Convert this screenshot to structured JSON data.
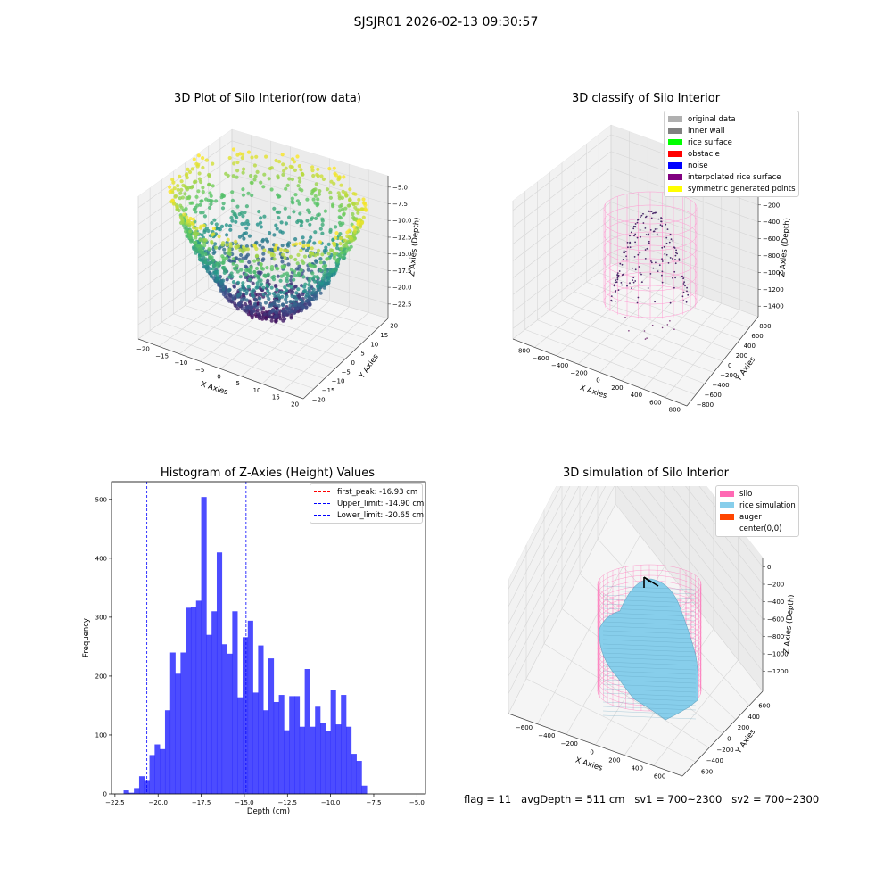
{
  "suptitle": "SJSJR01 2026-02-13 09:30:57",
  "panel1": {
    "title": "3D Plot of Silo Interior(row data)",
    "xlabel": "X Axies",
    "ylabel": "Y Axies",
    "zlabel": "Z Axies (Depth)",
    "xticks": [
      "−20",
      "−15",
      "−10",
      "−5",
      "0",
      "5",
      "10",
      "15",
      "20"
    ],
    "yticks": [
      "−20",
      "−15",
      "−10",
      "−5",
      "0",
      "5",
      "10",
      "15",
      "20"
    ],
    "zticks": [
      "−5.0",
      "−7.5",
      "−10.0",
      "−12.5",
      "−15.0",
      "−17.5",
      "−20.0",
      "−22.5"
    ],
    "colormap": "viridis"
  },
  "panel2": {
    "title": "3D classify of Silo Interior",
    "xlabel": "X Axies",
    "ylabel": "Y Axies",
    "zlabel": "Z Axies (Depth)",
    "xticks": [
      "−800",
      "−600",
      "−400",
      "−200",
      "0",
      "200",
      "400",
      "600",
      "800"
    ],
    "yticks": [
      "−800",
      "−600",
      "−400",
      "−200",
      "0",
      "200",
      "400",
      "600",
      "800"
    ],
    "zticks": [
      "0",
      "−200",
      "−400",
      "−600",
      "−800",
      "−1000",
      "−1200",
      "−1400"
    ],
    "legend": [
      {
        "label": "original data",
        "color": "#b0b0b0"
      },
      {
        "label": "inner wall",
        "color": "#808080"
      },
      {
        "label": "rice surface",
        "color": "#00ff00"
      },
      {
        "label": "obstacle",
        "color": "#ff0000"
      },
      {
        "label": "noise",
        "color": "#0000ff"
      },
      {
        "label": "interpolated rice surface",
        "color": "#800080"
      },
      {
        "label": "symmetric generated points",
        "color": "#ffff00"
      }
    ]
  },
  "panel3": {
    "title": "Histogram of Z-Axies (Height) Values",
    "legend": [
      {
        "label": "first_peak: -16.93 cm",
        "color": "#ff0000"
      },
      {
        "label": "Upper_limit: -14.90 cm",
        "color": "#0000ff"
      },
      {
        "label": "Lower_limit: -20.65 cm",
        "color": "#0000ff"
      }
    ]
  },
  "panel4": {
    "title": "3D simulation of Silo Interior",
    "xlabel": "X Axies",
    "ylabel": "Y Axies",
    "zlabel": "Z Axies (Depth)",
    "xticks": [
      "−600",
      "−400",
      "−200",
      "0",
      "200",
      "400",
      "600"
    ],
    "yticks": [
      "−600",
      "−400",
      "−200",
      "0",
      "200",
      "400",
      "600"
    ],
    "zticks": [
      "0",
      "−200",
      "−400",
      "−600",
      "−800",
      "−1000",
      "−1200"
    ],
    "legend": [
      {
        "label": "silo",
        "color": "#ff69b4"
      },
      {
        "label": "rice simulation",
        "color": "#87ceeb"
      },
      {
        "label": "auger",
        "color": "#ff4500"
      },
      {
        "label": "center(0,0)",
        "color": "#ffffff"
      }
    ]
  },
  "footer": {
    "flag": "flag = 11",
    "avg": "avgDepth = 511 cm",
    "sv1": "sv1 = 700~2300",
    "sv2": "sv2 = 700~2300"
  },
  "chart_data": [
    {
      "type": "scatter",
      "title": "3D Plot of Silo Interior(row data)",
      "xlabel": "X Axies",
      "ylabel": "Y Axies",
      "zlabel": "Z Axies (Depth)",
      "xlim": [
        -20,
        20
      ],
      "ylim": [
        -20,
        20
      ],
      "zlim": [
        -22.5,
        -5.0
      ],
      "colormap": "viridis",
      "shape": "bowl"
    },
    {
      "type": "scatter",
      "title": "3D classify of Silo Interior",
      "xlabel": "X Axies",
      "ylabel": "Y Axies",
      "zlabel": "Z Axies (Depth)",
      "xlim": [
        -800,
        800
      ],
      "ylim": [
        -800,
        800
      ],
      "zlim": [
        -1400,
        0
      ],
      "series": [
        {
          "name": "original data"
        },
        {
          "name": "inner wall"
        },
        {
          "name": "rice surface"
        },
        {
          "name": "obstacle"
        },
        {
          "name": "noise"
        },
        {
          "name": "interpolated rice surface"
        },
        {
          "name": "symmetric generated points"
        }
      ]
    },
    {
      "type": "bar",
      "title": "Histogram of Z-Axies (Height) Values",
      "xlabel": "Depth (cm)",
      "ylabel": "Frequency",
      "xlim": [
        -22.7,
        -4.5
      ],
      "ylim": [
        0,
        530
      ],
      "xticks": [
        -22.5,
        -20.0,
        -17.5,
        -15.0,
        -12.5,
        -10.0,
        -7.5,
        -5.0
      ],
      "xtick_labels": [
        "−22.5",
        "−20.0",
        "−17.5",
        "−15.0",
        "−12.5",
        "−10.0",
        "−7.5",
        "−5.0"
      ],
      "yticks": [
        0,
        100,
        200,
        300,
        400,
        500
      ],
      "bin_start": -22.0,
      "bin_width": 0.3,
      "values": [
        6,
        2,
        10,
        30,
        22,
        66,
        84,
        76,
        142,
        240,
        204,
        240,
        316,
        318,
        328,
        504,
        270,
        310,
        410,
        254,
        238,
        310,
        164,
        266,
        294,
        172,
        252,
        142,
        230,
        156,
        168,
        108,
        166,
        166,
        114,
        212,
        114,
        148,
        120,
        106,
        176,
        118,
        168,
        114,
        68,
        56,
        14
      ],
      "lines": [
        {
          "name": "first_peak: -16.93 cm",
          "x": -16.93,
          "color": "#ff0000"
        },
        {
          "name": "Upper_limit: -14.90 cm",
          "x": -14.9,
          "color": "#0000ff"
        },
        {
          "name": "Lower_limit: -20.65 cm",
          "x": -20.65,
          "color": "#0000ff"
        }
      ]
    },
    {
      "type": "area",
      "title": "3D simulation of Silo Interior",
      "xlabel": "X Axies",
      "ylabel": "Y Axies",
      "zlabel": "Z Axies (Depth)",
      "xlim": [
        -700,
        700
      ],
      "ylim": [
        -700,
        700
      ],
      "zlim": [
        -1300,
        100
      ],
      "series": [
        {
          "name": "silo"
        },
        {
          "name": "rice simulation"
        },
        {
          "name": "auger"
        },
        {
          "name": "center(0,0)"
        }
      ]
    }
  ]
}
